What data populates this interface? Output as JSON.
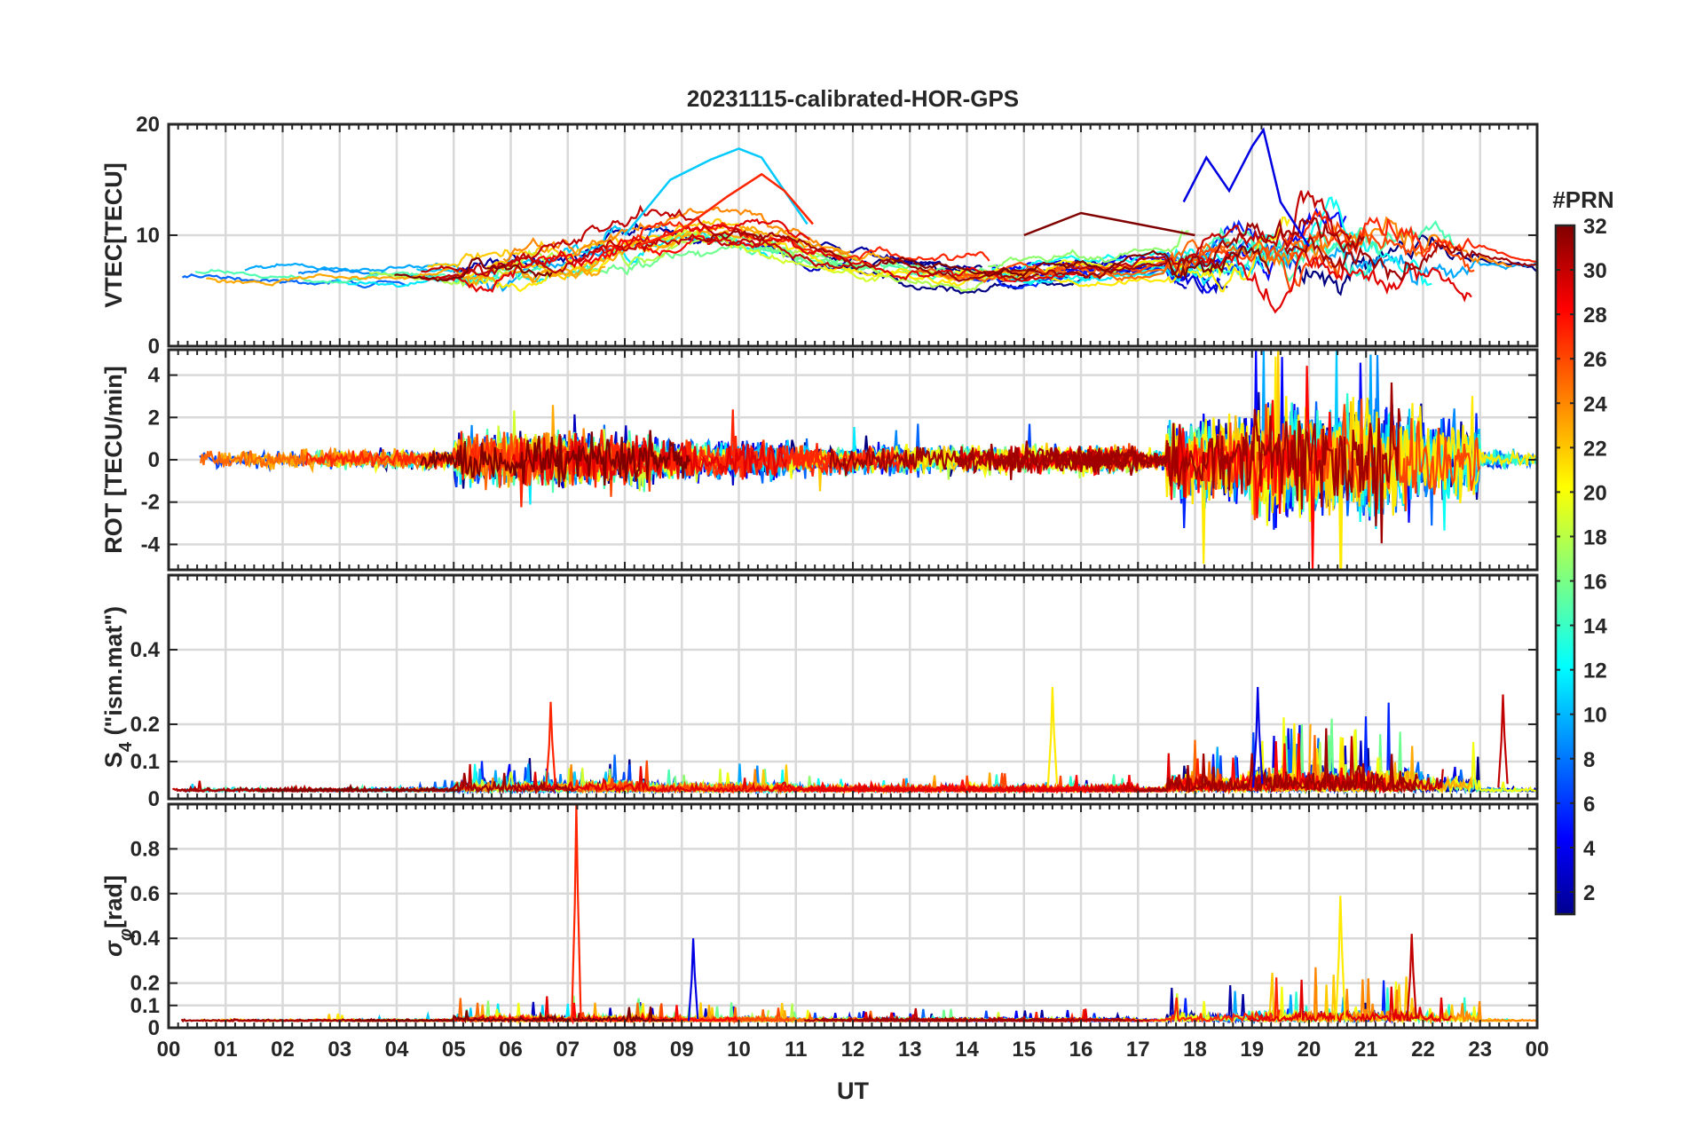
{
  "chart_data": {
    "type": "line",
    "title": "20231115-calibrated-HOR-GPS",
    "xlabel": "UT",
    "x_ticks": [
      "00",
      "01",
      "02",
      "03",
      "04",
      "05",
      "06",
      "07",
      "08",
      "09",
      "10",
      "11",
      "12",
      "13",
      "14",
      "15",
      "16",
      "17",
      "18",
      "19",
      "20",
      "21",
      "22",
      "23",
      "00"
    ],
    "xlim_hours": [
      0,
      24
    ],
    "colorbar": {
      "label": "#PRN",
      "range": [
        1,
        32
      ],
      "ticks": [
        "2",
        "4",
        "6",
        "8",
        "10",
        "12",
        "14",
        "16",
        "18",
        "20",
        "22",
        "24",
        "26",
        "28",
        "30",
        "32"
      ],
      "colormap": "jet"
    },
    "panels": [
      {
        "id": "vtec",
        "ylabel": "VTEC[TECU]",
        "ylim": [
          0,
          20
        ],
        "y_ticks": [
          "0",
          "10",
          "20"
        ],
        "series_summary": [
          {
            "name": "PRN 10-12 (light blue)",
            "x": [
              8.0,
              8.8,
              9.5,
              10.0,
              10.4,
              10.8,
              11.2
            ],
            "y": [
              10,
              15,
              16.8,
              17.8,
              17,
              14,
              11
            ]
          },
          {
            "name": "PRN 27 (red)",
            "x": [
              8.2,
              9.0,
              9.8,
              10.4,
              10.8,
              11.3
            ],
            "y": [
              9,
              10.5,
              13.5,
              15.5,
              14,
              11
            ]
          },
          {
            "name": "PRN 4 (blue)",
            "x": [
              17.8,
              18.2,
              18.6,
              19.0,
              19.2,
              19.5,
              20.0
            ],
            "y": [
              13,
              17,
              14,
              18,
              19.5,
              13,
              9
            ]
          },
          {
            "name": "PRN 32 (dark red)",
            "x": [
              15.0,
              16.0,
              17.0,
              18.0
            ],
            "y": [
              10,
              12,
              11,
              10
            ]
          }
        ]
      },
      {
        "id": "rot",
        "ylabel": "ROT [TECU/min]",
        "ylim": [
          -5.2,
          5.2
        ],
        "y_ticks": [
          "-4",
          "-2",
          "0",
          "2",
          "4"
        ]
      },
      {
        "id": "s4",
        "ylabel": "S4 (\"ism.mat\")",
        "ylabel_main": "S",
        "ylabel_sub": "4",
        "ylabel_rest": " (\"ism.mat\")",
        "ylim": [
          0,
          0.6
        ],
        "y_ticks": [
          "0",
          "0.1",
          "0.2",
          "0.4"
        ],
        "peaks": [
          {
            "x": 6.7,
            "y": 0.26
          },
          {
            "x": 15.5,
            "y": 0.3
          },
          {
            "x": 19.1,
            "y": 0.3
          },
          {
            "x": 23.4,
            "y": 0.28
          }
        ]
      },
      {
        "id": "sigma_phi",
        "ylabel": "σφ[rad]",
        "ylabel_main": "σ",
        "ylabel_sub": "φ",
        "ylabel_rest": "[rad]",
        "ylim": [
          0,
          1.0
        ],
        "y_ticks": [
          "0",
          "0.1",
          "0.2",
          "0.4",
          "0.6",
          "0.8"
        ],
        "peaks": [
          {
            "x": 7.15,
            "y": 1.0
          },
          {
            "x": 20.55,
            "y": 0.59
          },
          {
            "x": 9.2,
            "y": 0.4
          },
          {
            "x": 21.8,
            "y": 0.42
          }
        ]
      }
    ]
  }
}
